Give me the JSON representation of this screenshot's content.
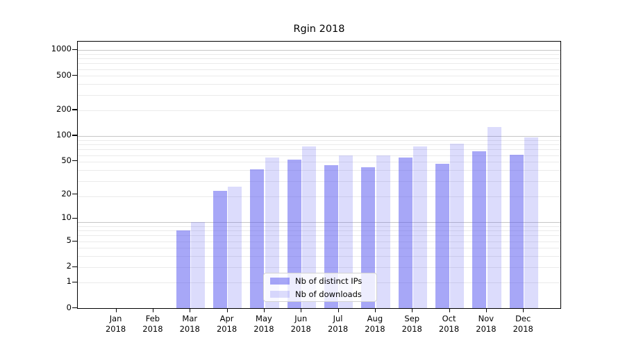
{
  "title": "Rgin 2018",
  "chart_data": {
    "type": "bar",
    "title": "Rgin 2018",
    "categories": [
      "Jan 2018",
      "Feb 2018",
      "Mar 2018",
      "Apr 2018",
      "May 2018",
      "Jun 2018",
      "Jul 2018",
      "Aug 2018",
      "Sep 2018",
      "Oct 2018",
      "Nov 2018",
      "Dec 2018"
    ],
    "series": [
      {
        "name": "Nb of distinct IPs",
        "values": [
          0,
          0,
          7,
          22,
          40,
          52,
          45,
          42,
          55,
          47,
          65,
          60
        ]
      },
      {
        "name": "Nb of downloads",
        "values": [
          0,
          0,
          9,
          25,
          55,
          75,
          58,
          58,
          75,
          80,
          126,
          95
        ]
      }
    ],
    "yscale": "log10(1+v)",
    "yticks": [
      0,
      1,
      2,
      5,
      10,
      20,
      50,
      100,
      200,
      500,
      1000
    ],
    "ylim": [
      0,
      1300
    ],
    "grid": "both",
    "legend_position": "lower center",
    "xlabel": "",
    "ylabel": ""
  },
  "legend": {
    "items": [
      {
        "label": "Nb of distinct IPs",
        "color": "rgba(80,80,240,0.5)"
      },
      {
        "label": "Nb of downloads",
        "color": "rgba(80,80,240,0.2)"
      }
    ]
  },
  "colors": {
    "bar_base": "#5050f0",
    "bar_dark_alpha": 0.5,
    "bar_light_alpha": 0.2,
    "grid_major": "#c6c6c6",
    "grid_minor": "#eaeaea",
    "spine": "#000000",
    "background": "#ffffff"
  }
}
